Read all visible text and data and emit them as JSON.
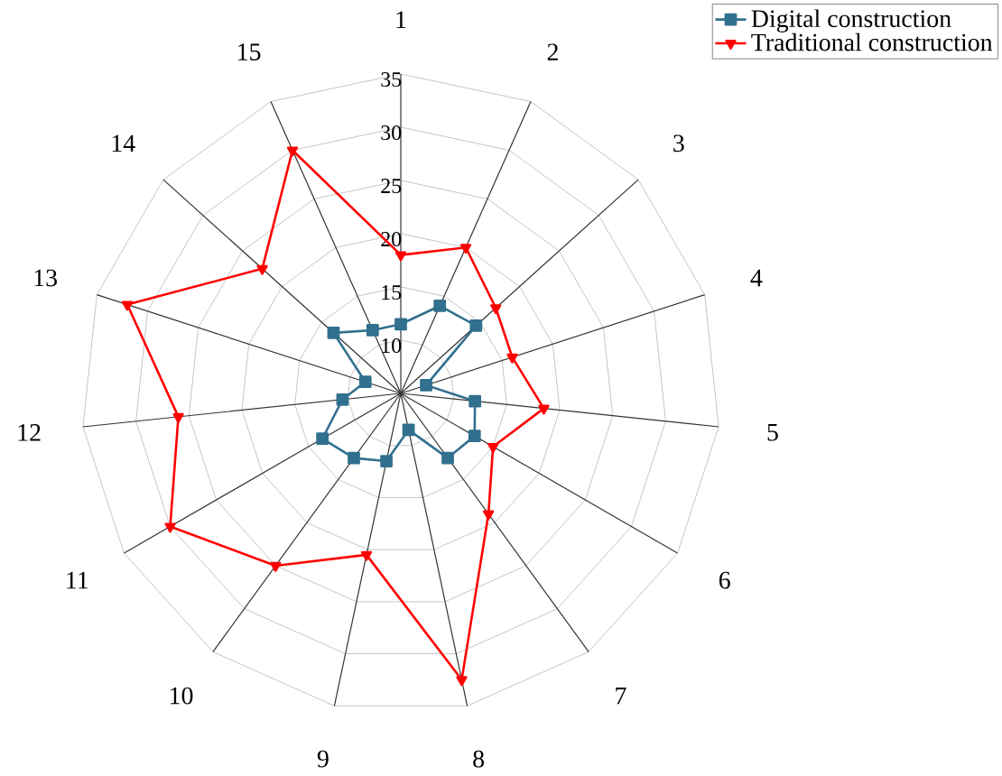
{
  "chart_data": {
    "type": "radar",
    "categories": [
      "1",
      "2",
      "3",
      "4",
      "5",
      "6",
      "7",
      "8",
      "9",
      "10",
      "11",
      "12",
      "13",
      "14",
      "15"
    ],
    "ylim": [
      5,
      35
    ],
    "yticks": [
      10,
      15,
      20,
      25,
      30,
      35
    ],
    "grid": true,
    "legend": "top right",
    "series": [
      {
        "name": "Digital construction",
        "color": "#31708f",
        "marker": "square",
        "values": [
          11.5,
          14,
          14.5,
          7.5,
          12,
          13,
          12.5,
          8.5,
          11.5,
          12.5,
          13.5,
          10.5,
          8.5,
          13.5,
          11.5
        ]
      },
      {
        "name": "Traditional construction",
        "color": "#ff0000",
        "marker": "triangle",
        "values": [
          18,
          20,
          17,
          16,
          18.5,
          15,
          19,
          32.5,
          20.5,
          25,
          30,
          26,
          32,
          22.5,
          30
        ]
      }
    ]
  }
}
